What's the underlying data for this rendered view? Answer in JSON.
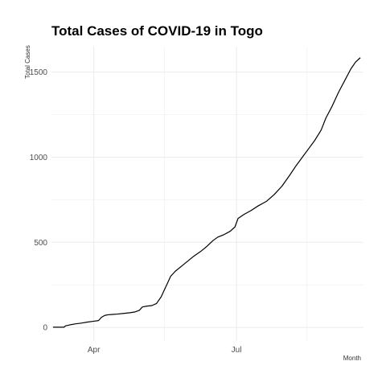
{
  "chart_data": {
    "type": "line",
    "title": "Total Cases of COVID-19 in Togo",
    "xlabel": "Month",
    "ylabel": "Total Cases",
    "x_tick_labels": [
      {
        "date": "2020-04-01",
        "label": "Apr"
      },
      {
        "date": "2020-07-01",
        "label": "Jul"
      }
    ],
    "y_ticks": [
      0,
      500,
      1000,
      1500
    ],
    "xlim": [
      "2020-03-05",
      "2020-09-20"
    ],
    "ylim": [
      -80,
      1650
    ],
    "grid": true,
    "legend": "none",
    "colors": {
      "line": "#000000",
      "grid": "#ebebeb"
    },
    "series": [
      {
        "points": [
          [
            "2020-03-06",
            1
          ],
          [
            "2020-03-10",
            1
          ],
          [
            "2020-03-13",
            1
          ],
          [
            "2020-03-14",
            9
          ],
          [
            "2020-03-17",
            15
          ],
          [
            "2020-03-20",
            20
          ],
          [
            "2020-03-24",
            25
          ],
          [
            "2020-03-28",
            31
          ],
          [
            "2020-04-01",
            36
          ],
          [
            "2020-04-04",
            40
          ],
          [
            "2020-04-06",
            60
          ],
          [
            "2020-04-08",
            70
          ],
          [
            "2020-04-10",
            74
          ],
          [
            "2020-04-13",
            76
          ],
          [
            "2020-04-16",
            78
          ],
          [
            "2020-04-20",
            82
          ],
          [
            "2020-04-24",
            86
          ],
          [
            "2020-04-27",
            90
          ],
          [
            "2020-04-30",
            100
          ],
          [
            "2020-05-02",
            120
          ],
          [
            "2020-05-05",
            125
          ],
          [
            "2020-05-08",
            128
          ],
          [
            "2020-05-11",
            140
          ],
          [
            "2020-05-14",
            180
          ],
          [
            "2020-05-16",
            220
          ],
          [
            "2020-05-18",
            260
          ],
          [
            "2020-05-20",
            300
          ],
          [
            "2020-05-23",
            330
          ],
          [
            "2020-05-27",
            360
          ],
          [
            "2020-05-31",
            390
          ],
          [
            "2020-06-04",
            420
          ],
          [
            "2020-06-08",
            445
          ],
          [
            "2020-06-12",
            475
          ],
          [
            "2020-06-16",
            510
          ],
          [
            "2020-06-19",
            530
          ],
          [
            "2020-06-23",
            545
          ],
          [
            "2020-06-27",
            565
          ],
          [
            "2020-06-30",
            590
          ],
          [
            "2020-07-02",
            640
          ],
          [
            "2020-07-06",
            665
          ],
          [
            "2020-07-10",
            685
          ],
          [
            "2020-07-15",
            715
          ],
          [
            "2020-07-20",
            740
          ],
          [
            "2020-07-25",
            780
          ],
          [
            "2020-07-30",
            830
          ],
          [
            "2020-08-04",
            895
          ],
          [
            "2020-08-08",
            950
          ],
          [
            "2020-08-12",
            1000
          ],
          [
            "2020-08-16",
            1050
          ],
          [
            "2020-08-20",
            1100
          ],
          [
            "2020-08-24",
            1160
          ],
          [
            "2020-08-27",
            1230
          ],
          [
            "2020-08-31",
            1300
          ],
          [
            "2020-09-04",
            1380
          ],
          [
            "2020-09-08",
            1450
          ],
          [
            "2020-09-12",
            1520
          ],
          [
            "2020-09-15",
            1560
          ],
          [
            "2020-09-18",
            1585
          ]
        ]
      }
    ]
  }
}
